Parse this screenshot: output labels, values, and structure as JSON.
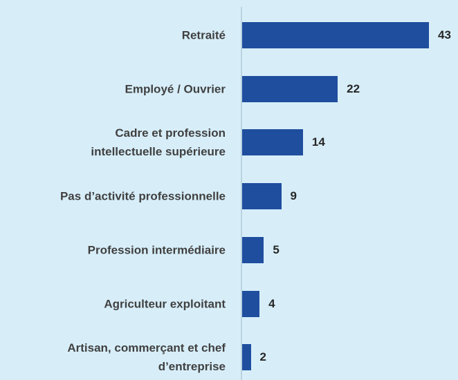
{
  "chart_data": {
    "type": "bar",
    "orientation": "horizontal",
    "categories": [
      "Retraité",
      "Employé / Ouvrier",
      "Cadre et profession\nintellectuelle supérieure",
      "Pas d’activité professionnelle",
      "Profession intermédiaire",
      "Agriculteur exploitant",
      "Artisan, commerçant et chef\nd’entreprise"
    ],
    "values": [
      43,
      22,
      14,
      9,
      5,
      4,
      2
    ],
    "color": "#1f4e9e"
  }
}
